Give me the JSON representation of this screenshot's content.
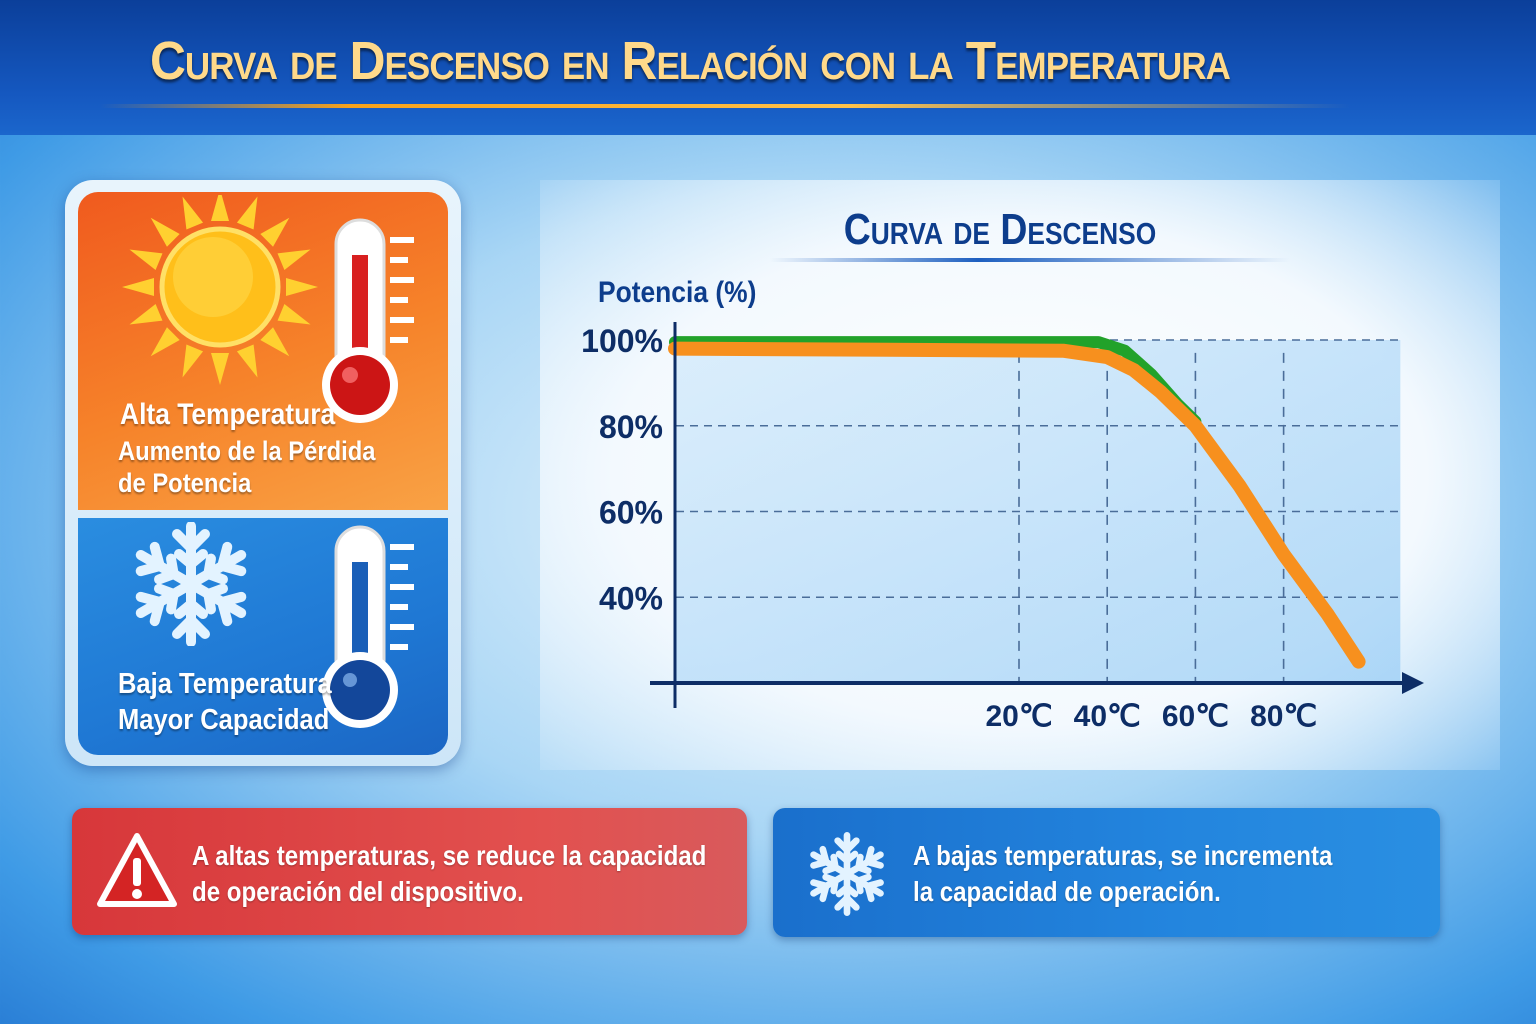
{
  "title": "Curva de Descenso en Relación con la Temperatura",
  "left_card": {
    "hot": {
      "title": "Alta Temperatura",
      "line1": "Aumento de la Pérdida",
      "line2": "de Potencia",
      "icon": "sun-icon",
      "thermo": "thermometer-high-icon"
    },
    "cold": {
      "title": "Baja Temperatura",
      "line1": "Mayor Capacidad",
      "icon": "snowflake-icon",
      "thermo": "thermometer-low-icon"
    }
  },
  "chart_title": "Curva de Descenso",
  "chart_data": {
    "type": "line",
    "title": "Curva de Descenso",
    "ylabel": "Potencia (%)",
    "xlabel": "",
    "yticks": [
      {
        "v": 100,
        "label": "100%"
      },
      {
        "v": 80,
        "label": "80%"
      },
      {
        "v": 60,
        "label": "60%"
      },
      {
        "v": 40,
        "label": "40%"
      }
    ],
    "xticks": [
      {
        "v": 20,
        "label": "20℃"
      },
      {
        "v": 40,
        "label": "40℃"
      },
      {
        "v": 60,
        "label": "60℃"
      },
      {
        "v": 80,
        "label": "80℃"
      }
    ],
    "xlim": [
      -58,
      111
    ],
    "ylim": [
      20,
      100
    ],
    "grid": true,
    "series": [
      {
        "color": "#22a22a",
        "x": [
          -58,
          38,
          44,
          50,
          56,
          60
        ],
        "y": [
          99.5,
          99.5,
          97.5,
          92,
          85,
          81
        ]
      },
      {
        "color": "#f7901e",
        "x": [
          -58,
          30,
          40,
          46,
          52,
          60,
          70,
          80,
          90,
          97
        ],
        "y": [
          98,
          97.5,
          96,
          93,
          88,
          80,
          66,
          50,
          36,
          25
        ]
      }
    ]
  },
  "notes": {
    "hot": {
      "line1": "A altas temperaturas, se reduce la capacidad",
      "line2": "de operación del dispositivo.",
      "icon": "warning-icon",
      "color": "#d9383a"
    },
    "cold": {
      "line1": "A bajas temperaturas, se incrementa",
      "line2": "la capacidad de operación.",
      "icon": "snowflake-icon",
      "color": "#1f78d4"
    }
  }
}
